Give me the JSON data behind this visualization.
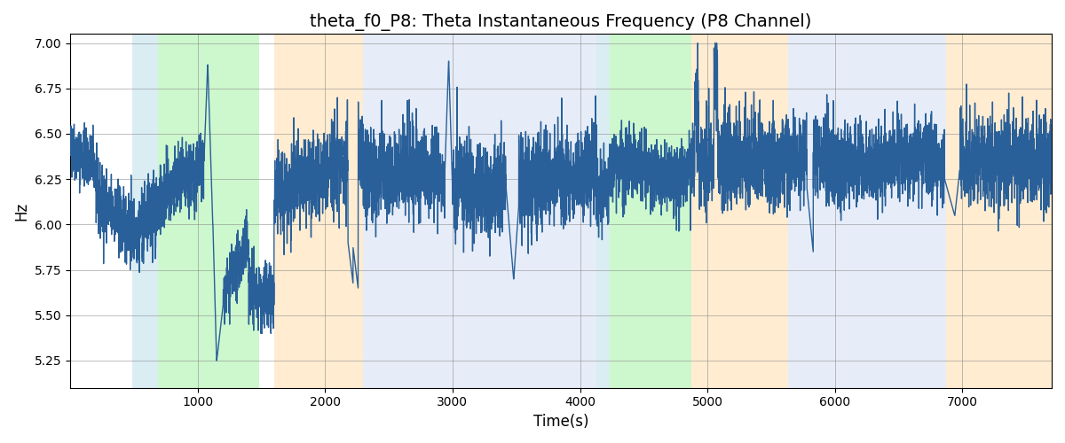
{
  "title": "theta_f0_P8: Theta Instantaneous Frequency (P8 Channel)",
  "xlabel": "Time(s)",
  "ylabel": "Hz",
  "xlim": [
    0,
    7700
  ],
  "ylim": [
    5.1,
    7.05
  ],
  "yticks": [
    5.25,
    5.5,
    5.75,
    6.0,
    6.25,
    6.5,
    6.75,
    7.0
  ],
  "xticks": [
    1000,
    2000,
    3000,
    4000,
    5000,
    6000,
    7000
  ],
  "line_color": "#2a6099",
  "line_width": 1.0,
  "bg_regions": [
    {
      "xstart": 490,
      "xend": 690,
      "color": "#add8e6",
      "alpha": 0.45
    },
    {
      "xstart": 690,
      "xend": 1480,
      "color": "#90ee90",
      "alpha": 0.45
    },
    {
      "xstart": 1600,
      "xend": 2300,
      "color": "#ffd59a",
      "alpha": 0.45
    },
    {
      "xstart": 2300,
      "xend": 4130,
      "color": "#c8d8f0",
      "alpha": 0.45
    },
    {
      "xstart": 4130,
      "xend": 4230,
      "color": "#add8e6",
      "alpha": 0.45
    },
    {
      "xstart": 4230,
      "xend": 4870,
      "color": "#90ee90",
      "alpha": 0.45
    },
    {
      "xstart": 4870,
      "xend": 5630,
      "color": "#ffd59a",
      "alpha": 0.45
    },
    {
      "xstart": 5630,
      "xend": 6870,
      "color": "#c8d8f0",
      "alpha": 0.45
    },
    {
      "xstart": 6870,
      "xend": 7700,
      "color": "#ffd59a",
      "alpha": 0.45
    }
  ],
  "title_fontsize": 14,
  "label_fontsize": 12
}
